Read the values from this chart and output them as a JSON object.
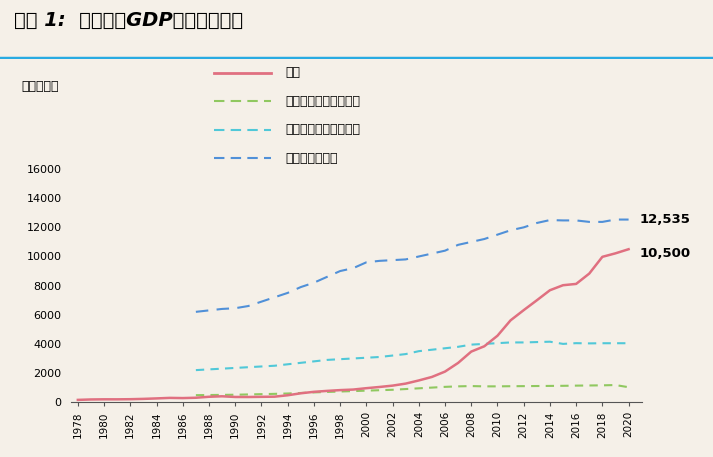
{
  "title": "图表 1:  中国人均GDP（现价）变化",
  "ylabel_unit": "单位：美元",
  "background_color": "#f5f0e8",
  "top_border_color": "#29abe2",
  "years": [
    1978,
    1979,
    1980,
    1981,
    1982,
    1983,
    1984,
    1985,
    1986,
    1987,
    1988,
    1989,
    1990,
    1991,
    1992,
    1993,
    1994,
    1995,
    1996,
    1997,
    1998,
    1999,
    2000,
    2001,
    2002,
    2003,
    2004,
    2005,
    2006,
    2007,
    2008,
    2009,
    2010,
    2011,
    2012,
    2013,
    2014,
    2015,
    2016,
    2017,
    2018,
    2019,
    2020
  ],
  "china_gdp": [
    156,
    185,
    195,
    194,
    203,
    225,
    257,
    293,
    280,
    303,
    370,
    403,
    356,
    354,
    366,
    377,
    473,
    609,
    709,
    773,
    827,
    865,
    959,
    1042,
    1135,
    1274,
    1490,
    1731,
    2099,
    2694,
    3471,
    3838,
    4560,
    5618,
    6316,
    6992,
    7683,
    8028,
    8117,
    8827,
    9977,
    10217,
    10500
  ],
  "lower_middle_data": {
    "years": [
      1987,
      1988,
      1989,
      1990,
      1991,
      1992,
      1993,
      1994,
      1995,
      1996,
      1997,
      1998,
      1999,
      2000,
      2001,
      2002,
      2003,
      2004,
      2005,
      2006,
      2007,
      2008,
      2009,
      2010,
      2011,
      2012,
      2013,
      2014,
      2015,
      2016,
      2017,
      2018,
      2019,
      2020
    ],
    "values": [
      480,
      490,
      500,
      510,
      530,
      550,
      570,
      595,
      630,
      670,
      700,
      730,
      760,
      790,
      820,
      850,
      900,
      950,
      1000,
      1050,
      1085,
      1105,
      1085,
      1085,
      1095,
      1100,
      1108,
      1115,
      1122,
      1135,
      1145,
      1155,
      1175,
      1026
    ]
  },
  "upper_middle_data": {
    "years": [
      1987,
      1988,
      1989,
      1990,
      1991,
      1992,
      1993,
      1994,
      1995,
      1996,
      1997,
      1998,
      1999,
      2000,
      2001,
      2002,
      2003,
      2004,
      2005,
      2006,
      2007,
      2008,
      2009,
      2010,
      2011,
      2012,
      2013,
      2014,
      2015,
      2016,
      2017,
      2018,
      2019,
      2020
    ],
    "values": [
      2200,
      2250,
      2300,
      2350,
      2400,
      2450,
      2500,
      2600,
      2700,
      2800,
      2900,
      2950,
      3000,
      3050,
      3100,
      3200,
      3300,
      3500,
      3600,
      3700,
      3800,
      3950,
      4000,
      4050,
      4100,
      4100,
      4125,
      4150,
      4000,
      4050,
      4035,
      4045,
      4046,
      4046
    ]
  },
  "high_income_data": {
    "years": [
      1987,
      1988,
      1989,
      1990,
      1991,
      1992,
      1993,
      1994,
      1995,
      1996,
      1997,
      1998,
      1999,
      2000,
      2001,
      2002,
      2003,
      2004,
      2005,
      2006,
      2007,
      2008,
      2009,
      2010,
      2011,
      2012,
      2013,
      2014,
      2015,
      2016,
      2017,
      2018,
      2019,
      2020
    ],
    "values": [
      6200,
      6300,
      6400,
      6450,
      6600,
      6900,
      7200,
      7500,
      7900,
      8200,
      8600,
      9000,
      9200,
      9600,
      9700,
      9750,
      9800,
      10000,
      10200,
      10400,
      10800,
      11000,
      11200,
      11500,
      11800,
      12000,
      12300,
      12500,
      12476,
      12476,
      12375,
      12375,
      12536,
      12535
    ]
  },
  "china_color": "#e07080",
  "lower_middle_color": "#90c860",
  "upper_middle_color": "#50c8d8",
  "high_income_color": "#5090d8",
  "annotation_12535": "12,535",
  "annotation_10500": "10,500",
  "ylim": [
    0,
    16000
  ],
  "yticks": [
    0,
    2000,
    4000,
    6000,
    8000,
    10000,
    12000,
    14000,
    16000
  ],
  "legend_labels": [
    "中国",
    "中等偏下收入国家下限",
    "中等偏上收入国家下限",
    "高收入国家下限"
  ]
}
